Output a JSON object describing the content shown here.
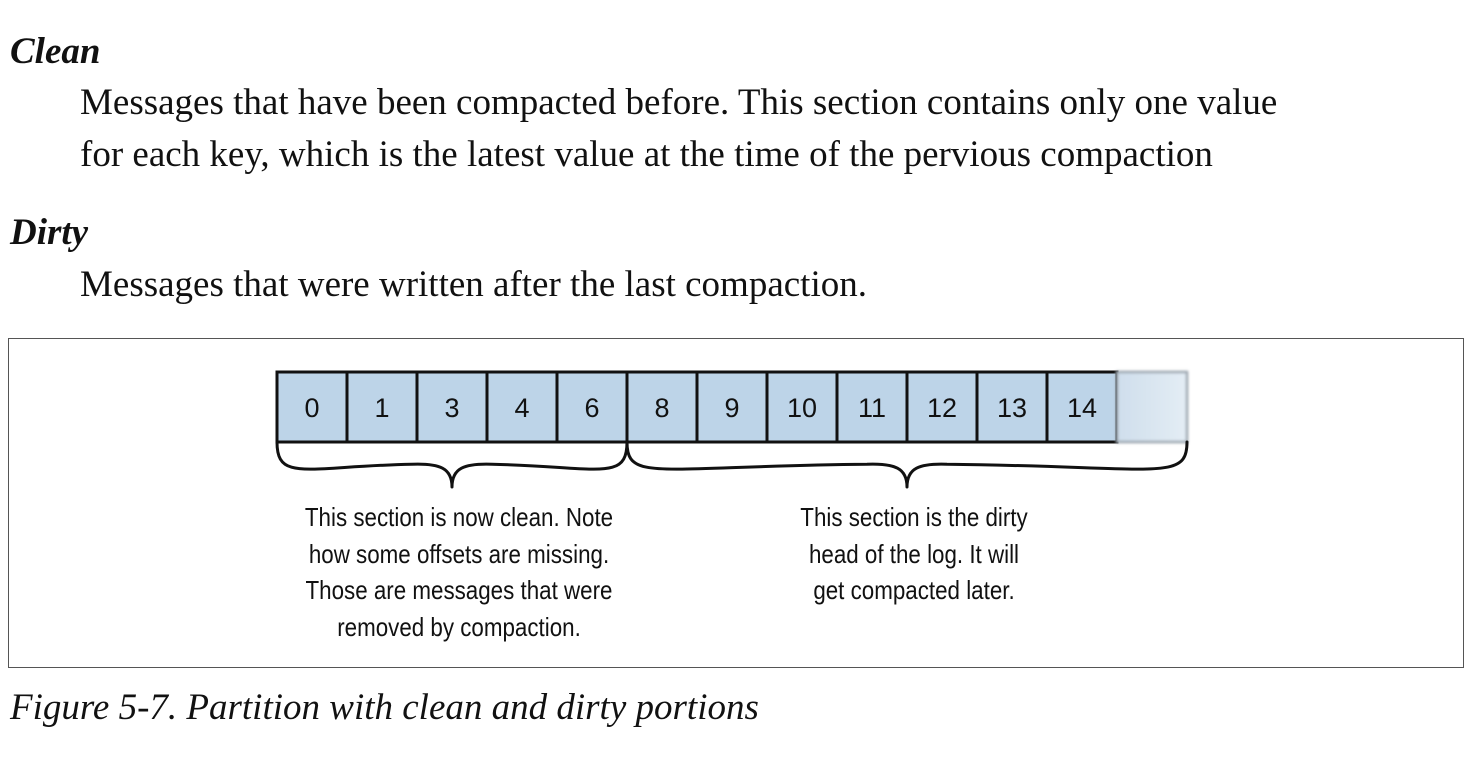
{
  "clean": {
    "term": "Clean",
    "lines": [
      "Messages that have been compacted before. This section contains only one value",
      "for each key, which is the latest value at the time of the pervious compaction"
    ]
  },
  "dirty": {
    "term": "Dirty",
    "lines": [
      "Messages that were written after the last compaction."
    ]
  },
  "figure": {
    "offsets": [
      "0",
      "1",
      "3",
      "4",
      "6",
      "8",
      "9",
      "10",
      "11",
      "12",
      "13",
      "14"
    ],
    "clean_count": 5,
    "cell_fill": "#bdd4e8",
    "empty_fill": "#dbe7f1",
    "clean_note": [
      "This section is now clean. Note",
      "how some offsets are missing.",
      "Those are messages that were",
      "removed by compaction."
    ],
    "dirty_note": [
      "This section is the dirty",
      "head of the log. It will",
      "get compacted later."
    ],
    "caption": "Figure 5-7. Partition with clean and dirty portions"
  }
}
